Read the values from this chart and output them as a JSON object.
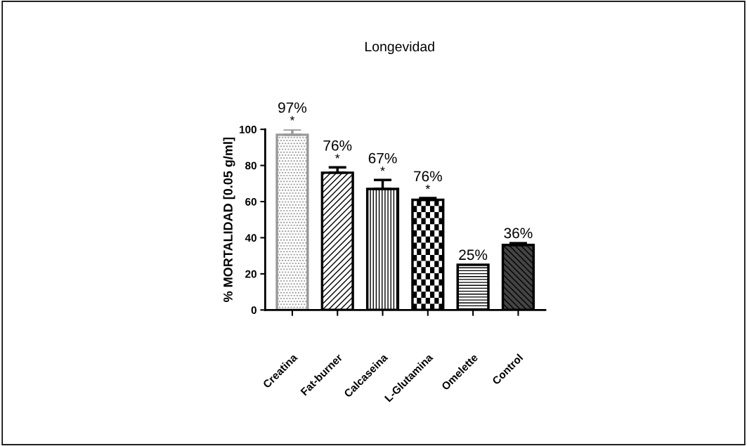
{
  "chart_data": {
    "type": "bar",
    "title": "Longevidad",
    "ylabel": "% MORTALIDAD [0.05 g/ml]",
    "categories": [
      "Creatina",
      "Fat-burner",
      "Calcaseina",
      "L-Glutamina",
      "Omelette",
      "Control"
    ],
    "values": [
      97,
      76,
      67,
      61,
      25,
      36
    ],
    "errors": [
      3,
      3,
      5,
      1,
      null,
      1
    ],
    "colors": [
      "#999999",
      "#000000",
      "#000000",
      "#000000",
      "#000000",
      "#000000"
    ],
    "annotations": [
      {
        "text": "*",
        "x": "Creatina",
        "y": 100
      },
      {
        "text": "*",
        "x": "Fat-burner",
        "y": 79
      },
      {
        "text": "*",
        "x": "Calcaseina",
        "y": 72
      },
      {
        "text": "*",
        "x": "L-Glutamina",
        "y": 62
      },
      {
        "text": "97%",
        "x": "Creatina",
        "y": 100
      },
      {
        "text": "76%",
        "x": "Fat-burner",
        "y": 79
      },
      {
        "text": "67%",
        "x": "Calcaseina",
        "y": 72
      },
      {
        "text": "76%",
        "x": "L-Glutamina",
        "y": 62
      },
      {
        "text": "25%",
        "x": "Omelette",
        "y": 25
      },
      {
        "text": "36%",
        "x": "Control",
        "y": 37
      }
    ],
    "ylim": [
      0,
      100
    ],
    "yticks": [
      0,
      20,
      40,
      60,
      80,
      100
    ],
    "grid": false,
    "legend": false
  }
}
